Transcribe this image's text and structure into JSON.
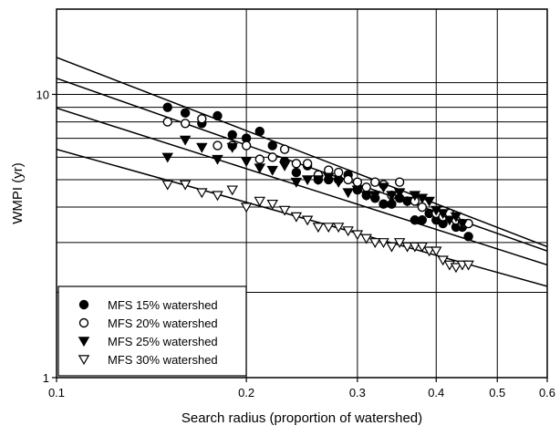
{
  "chart_data": {
    "type": "scatter",
    "title": "",
    "xlabel": "Search radius (proportion of watershed)",
    "ylabel": "WMPI (yr)",
    "xscale": "log",
    "yscale": "log",
    "xlim": [
      0.1,
      0.6
    ],
    "ylim": [
      1,
      20
    ],
    "x_ticks": [
      0.1,
      0.2,
      0.3,
      0.4,
      0.5,
      0.6
    ],
    "x_tick_labels": [
      "0.1",
      "0.2",
      "0.3",
      "0.4",
      "0.5",
      "0.6"
    ],
    "y_ticks": [
      1,
      10
    ],
    "y_tick_labels": [
      "1",
      "10"
    ],
    "grid": true,
    "x_grid": [
      0.2,
      0.3,
      0.4,
      0.5
    ],
    "y_grid": [
      2,
      3,
      4,
      5,
      6,
      7,
      8,
      9,
      10,
      11
    ],
    "legend_position": "bottom-left",
    "series": [
      {
        "name": "MFS 15% watershed",
        "marker": "filled-circle",
        "fit": {
          "intercept_at_xmin": 13.5,
          "value_at_xmax": 2.9
        },
        "points": [
          [
            0.15,
            9.0
          ],
          [
            0.16,
            8.6
          ],
          [
            0.17,
            7.9
          ],
          [
            0.18,
            8.4
          ],
          [
            0.19,
            7.2
          ],
          [
            0.2,
            7.0
          ],
          [
            0.21,
            7.4
          ],
          [
            0.22,
            6.6
          ],
          [
            0.23,
            5.8
          ],
          [
            0.24,
            5.3
          ],
          [
            0.25,
            5.6
          ],
          [
            0.26,
            5.0
          ],
          [
            0.27,
            5.0
          ],
          [
            0.28,
            5.0
          ],
          [
            0.29,
            5.2
          ],
          [
            0.3,
            4.6
          ],
          [
            0.31,
            4.4
          ],
          [
            0.32,
            4.3
          ],
          [
            0.33,
            4.1
          ],
          [
            0.34,
            4.1
          ],
          [
            0.35,
            4.3
          ],
          [
            0.36,
            4.2
          ],
          [
            0.37,
            3.6
          ],
          [
            0.38,
            3.6
          ],
          [
            0.39,
            3.8
          ],
          [
            0.4,
            3.6
          ],
          [
            0.41,
            3.5
          ],
          [
            0.42,
            3.7
          ],
          [
            0.43,
            3.4
          ],
          [
            0.44,
            3.4
          ],
          [
            0.45,
            3.15
          ]
        ]
      },
      {
        "name": "MFS 20% watershed",
        "marker": "open-circle",
        "fit": {
          "intercept_at_xmin": 11.4,
          "value_at_xmax": 2.8
        },
        "points": [
          [
            0.15,
            8.0
          ],
          [
            0.16,
            7.9
          ],
          [
            0.17,
            8.2
          ],
          [
            0.18,
            6.6
          ],
          [
            0.19,
            6.6
          ],
          [
            0.2,
            6.6
          ],
          [
            0.21,
            5.9
          ],
          [
            0.22,
            6.0
          ],
          [
            0.23,
            6.4
          ],
          [
            0.24,
            5.7
          ],
          [
            0.25,
            5.7
          ],
          [
            0.26,
            5.2
          ],
          [
            0.27,
            5.4
          ],
          [
            0.28,
            5.3
          ],
          [
            0.29,
            5.0
          ],
          [
            0.3,
            4.9
          ],
          [
            0.31,
            4.7
          ],
          [
            0.32,
            4.9
          ],
          [
            0.33,
            4.8
          ],
          [
            0.34,
            4.4
          ],
          [
            0.35,
            4.9
          ],
          [
            0.37,
            4.2
          ],
          [
            0.38,
            4.0
          ],
          [
            0.4,
            3.8
          ],
          [
            0.41,
            3.7
          ],
          [
            0.42,
            3.8
          ],
          [
            0.43,
            3.6
          ],
          [
            0.44,
            3.5
          ],
          [
            0.45,
            3.5
          ]
        ]
      },
      {
        "name": "MFS 25% watershed",
        "marker": "filled-triangle-down",
        "fit": {
          "intercept_at_xmin": 8.95,
          "value_at_xmax": 2.5
        },
        "points": [
          [
            0.15,
            6.0
          ],
          [
            0.16,
            6.9
          ],
          [
            0.17,
            6.5
          ],
          [
            0.18,
            5.9
          ],
          [
            0.19,
            6.5
          ],
          [
            0.2,
            5.8
          ],
          [
            0.21,
            5.5
          ],
          [
            0.22,
            5.4
          ],
          [
            0.23,
            5.6
          ],
          [
            0.24,
            4.9
          ],
          [
            0.25,
            5.0
          ],
          [
            0.26,
            5.0
          ],
          [
            0.27,
            5.1
          ],
          [
            0.28,
            4.9
          ],
          [
            0.29,
            4.5
          ],
          [
            0.3,
            4.6
          ],
          [
            0.31,
            4.4
          ],
          [
            0.32,
            4.4
          ],
          [
            0.33,
            4.7
          ],
          [
            0.34,
            4.4
          ],
          [
            0.35,
            4.5
          ],
          [
            0.36,
            4.2
          ],
          [
            0.37,
            4.4
          ],
          [
            0.38,
            4.3
          ],
          [
            0.39,
            4.2
          ],
          [
            0.4,
            3.9
          ],
          [
            0.41,
            3.8
          ],
          [
            0.42,
            3.6
          ],
          [
            0.43,
            3.7
          ],
          [
            0.44,
            3.5
          ]
        ]
      },
      {
        "name": "MFS 30% watershed",
        "marker": "open-triangle-down",
        "fit": {
          "intercept_at_xmin": 6.4,
          "value_at_xmax": 2.1
        },
        "points": [
          [
            0.15,
            4.8
          ],
          [
            0.16,
            4.8
          ],
          [
            0.17,
            4.5
          ],
          [
            0.18,
            4.4
          ],
          [
            0.19,
            4.6
          ],
          [
            0.2,
            4.0
          ],
          [
            0.21,
            4.2
          ],
          [
            0.22,
            4.1
          ],
          [
            0.23,
            3.9
          ],
          [
            0.24,
            3.7
          ],
          [
            0.25,
            3.6
          ],
          [
            0.26,
            3.4
          ],
          [
            0.27,
            3.4
          ],
          [
            0.28,
            3.4
          ],
          [
            0.29,
            3.3
          ],
          [
            0.3,
            3.2
          ],
          [
            0.31,
            3.1
          ],
          [
            0.32,
            3.0
          ],
          [
            0.33,
            3.0
          ],
          [
            0.34,
            2.9
          ],
          [
            0.35,
            3.0
          ],
          [
            0.36,
            2.9
          ],
          [
            0.37,
            2.9
          ],
          [
            0.38,
            2.9
          ],
          [
            0.39,
            2.8
          ],
          [
            0.4,
            2.8
          ],
          [
            0.41,
            2.6
          ],
          [
            0.42,
            2.5
          ],
          [
            0.43,
            2.45
          ],
          [
            0.44,
            2.5
          ],
          [
            0.45,
            2.5
          ]
        ]
      }
    ]
  }
}
